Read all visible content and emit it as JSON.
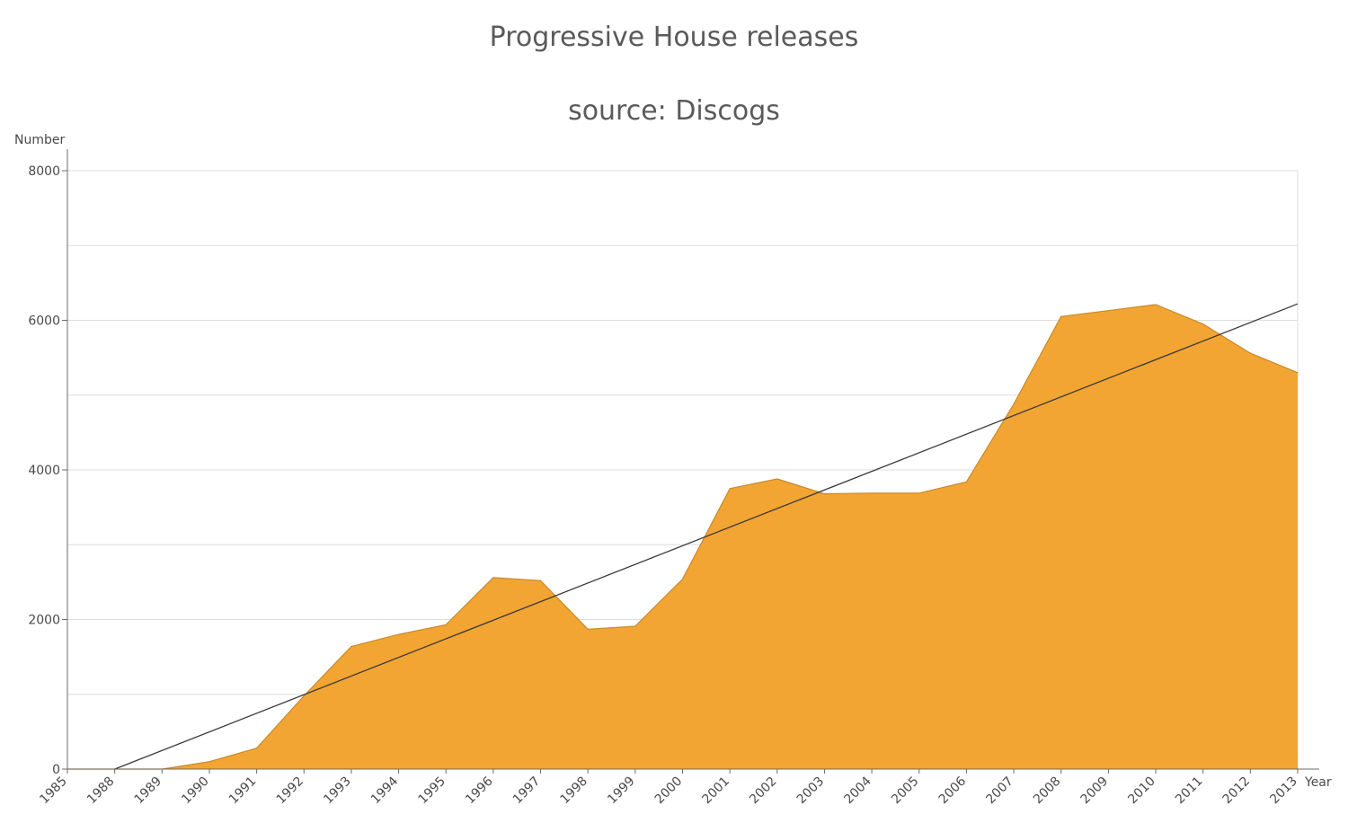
{
  "chart_data": {
    "type": "area",
    "title": "Progressive House releases",
    "subtitle": "source: Discogs",
    "xlabel": "Year",
    "ylabel": "Number",
    "ylim": [
      0,
      8000
    ],
    "y_ticks": [
      "0",
      "2000",
      "4000",
      "6000",
      "8000"
    ],
    "grid": true,
    "categories": [
      "1985",
      "1988",
      "1989",
      "1990",
      "1991",
      "1992",
      "1993",
      "1994",
      "1995",
      "1996",
      "1997",
      "1998",
      "1999",
      "2000",
      "2001",
      "2002",
      "2003",
      "2004",
      "2005",
      "2006",
      "2007",
      "2008",
      "2009",
      "2010",
      "2011",
      "2012",
      "2013"
    ],
    "values": [
      0,
      0,
      0,
      100,
      280,
      980,
      1640,
      1800,
      1930,
      2560,
      2520,
      1870,
      1910,
      2540,
      3750,
      3880,
      3680,
      3690,
      3690,
      3840,
      4880,
      6050,
      6130,
      6210,
      5950,
      5560,
      5300
    ],
    "trendline": {
      "start": [
        1988,
        0
      ],
      "end": [
        2013,
        6220
      ]
    },
    "colors": {
      "area_fill": "#f2a533",
      "area_stroke": "#c98a2a",
      "trendline": "#3a3a3a",
      "grid": "#dedede",
      "axis": "#6b6b6b"
    }
  }
}
